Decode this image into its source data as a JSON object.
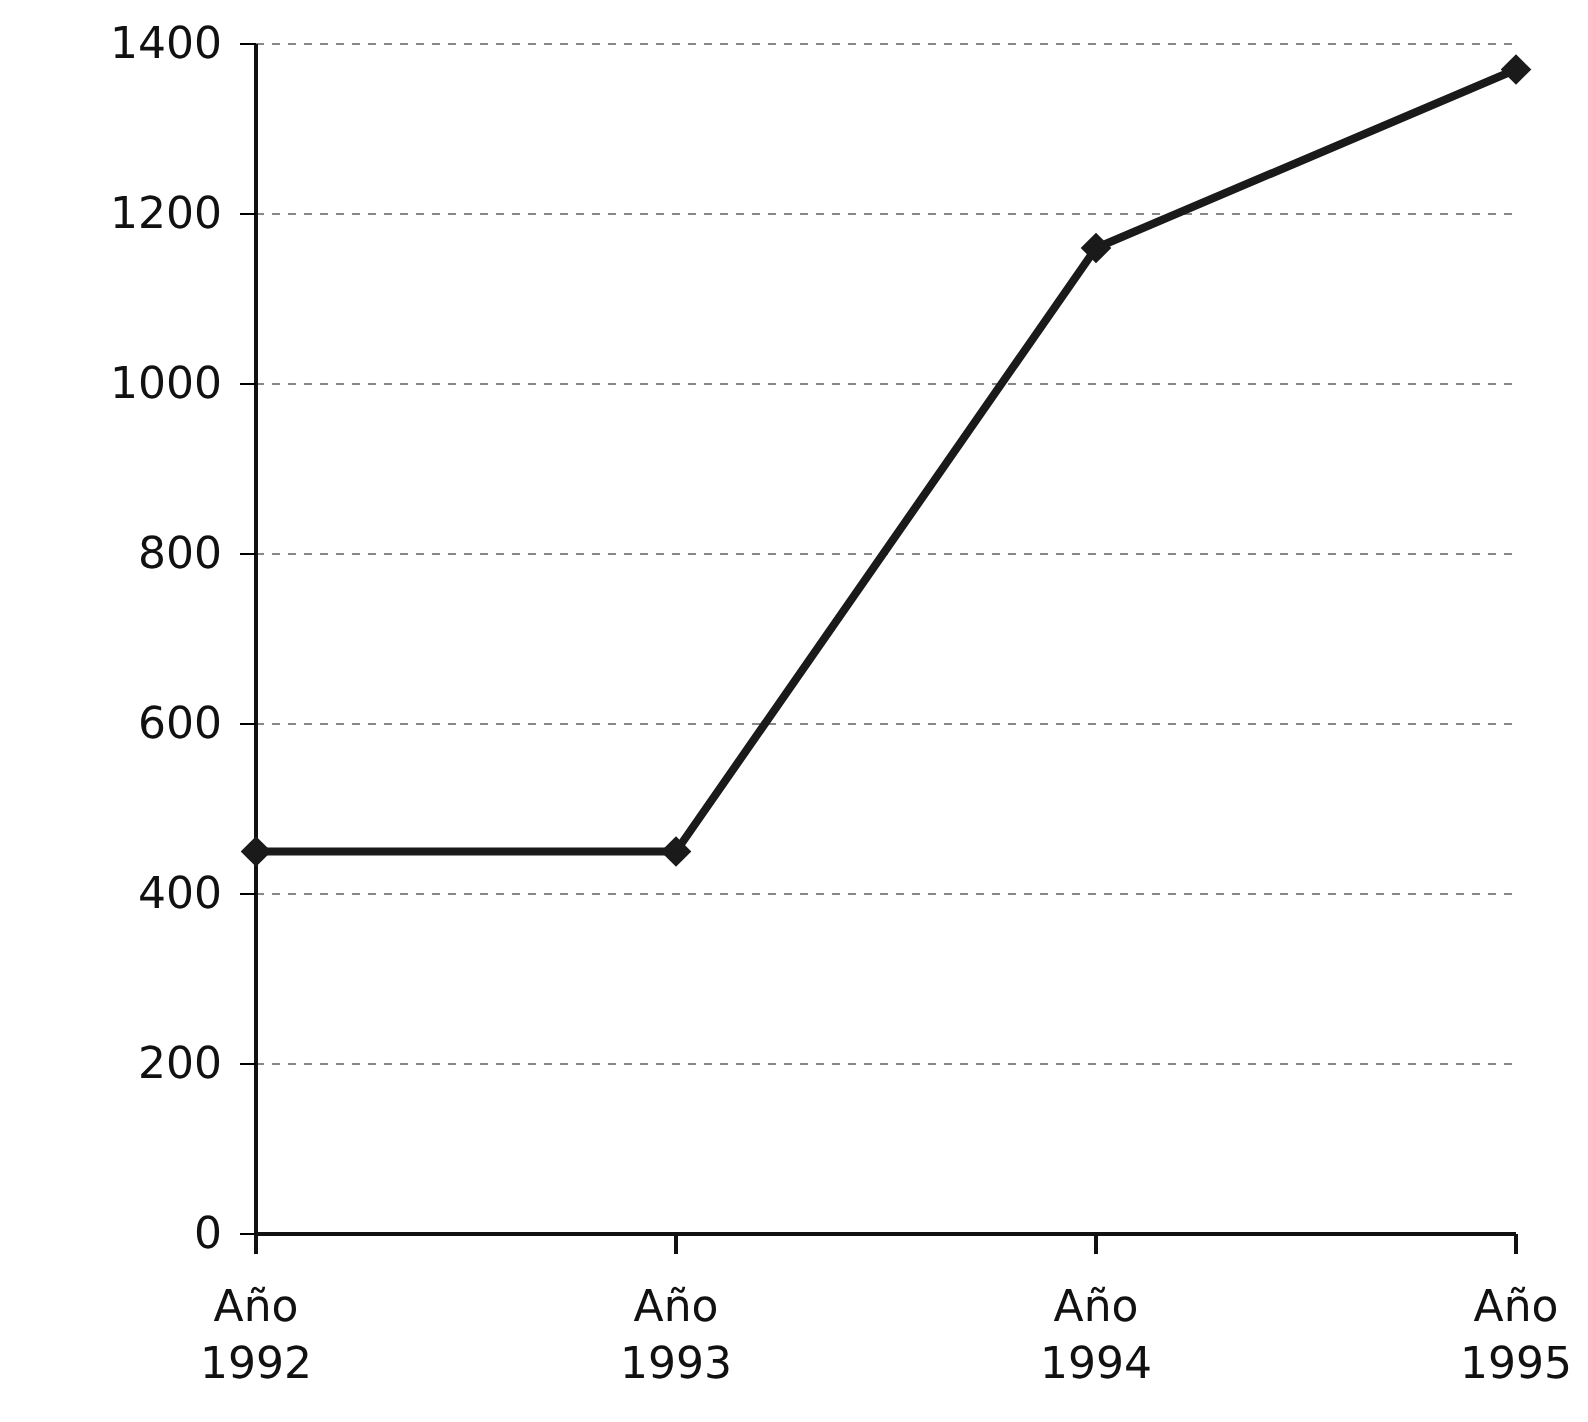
{
  "chart_data": {
    "type": "line",
    "categories": [
      "Año 1992",
      "Año 1993",
      "Año 1994",
      "Año 1995"
    ],
    "series": [
      {
        "color": "#1a1a1a",
        "values": [
          450,
          450,
          1160,
          1370
        ]
      }
    ],
    "ylim": [
      0,
      1400
    ],
    "yticks": [
      0,
      200,
      400,
      600,
      800,
      1000,
      1200,
      1400
    ],
    "grid": "y",
    "marker": "diamond",
    "line_style": "solid"
  }
}
